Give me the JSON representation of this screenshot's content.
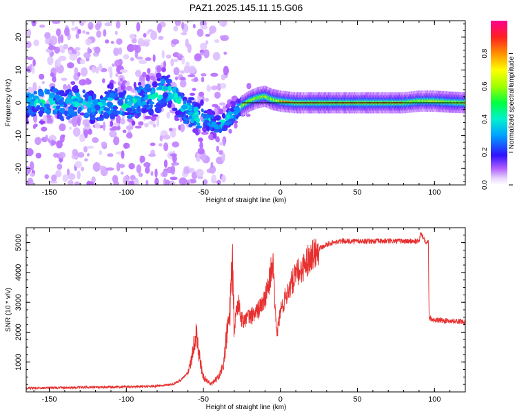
{
  "chart_data": [
    {
      "type": "heatmap",
      "title": "PAZ1.2025.145.11.15.G06",
      "xlabel": "Height of straight line (km)",
      "ylabel": "Frequency (Hz)",
      "xlim": [
        -165,
        120
      ],
      "ylim": [
        -25,
        25
      ],
      "xticks": [
        -150,
        -100,
        -50,
        0,
        50,
        100
      ],
      "yticks": [
        -20,
        -10,
        0,
        10,
        20
      ],
      "colorbar": {
        "label": "Normalized spectral amplitude",
        "range": [
          0,
          1
        ],
        "ticks": [
          0.0,
          0.2,
          0.4,
          0.6,
          0.8
        ]
      },
      "ridge": {
        "x": [
          -165,
          -150,
          -140,
          -130,
          -120,
          -110,
          -100,
          -90,
          -80,
          -75,
          -70,
          -65,
          -60,
          -55,
          -50,
          -45,
          -40,
          -35,
          -30,
          -25,
          -20,
          -15,
          -10,
          -5,
          0,
          10,
          20,
          40,
          60,
          80,
          90,
          100,
          110,
          120
        ],
        "freq": [
          0,
          0.5,
          -1,
          1,
          -2,
          0,
          -1,
          1,
          2,
          4,
          3,
          0,
          -3,
          -4,
          -5,
          -6,
          -7,
          -5,
          -3,
          -1,
          0.5,
          1.5,
          2,
          1,
          0.5,
          0,
          0,
          0,
          0,
          0,
          0.5,
          0.5,
          0.2,
          0
        ]
      }
    },
    {
      "type": "line",
      "title": "",
      "xlabel": "Height of straight line (km)",
      "ylabel": "SNR (10 * v/v)",
      "xlim": [
        -165,
        120
      ],
      "ylim": [
        0,
        5500
      ],
      "xticks": [
        -150,
        -100,
        -50,
        0,
        50,
        100
      ],
      "yticks": [
        1000,
        2000,
        3000,
        4000,
        5000
      ],
      "series": [
        {
          "name": "SNR",
          "color": "#e83030",
          "x": [
            -165,
            -150,
            -130,
            -110,
            -90,
            -80,
            -70,
            -65,
            -60,
            -57,
            -55,
            -52,
            -50,
            -45,
            -40,
            -37,
            -35,
            -33,
            -31,
            -30,
            -29,
            -27,
            -25,
            -20,
            -15,
            -10,
            -8,
            -5,
            -3,
            -2,
            0,
            5,
            10,
            15,
            20,
            25,
            30,
            35,
            40,
            50,
            60,
            70,
            80,
            90,
            91,
            95,
            96,
            96.5,
            100,
            110,
            120
          ],
          "values": [
            120,
            140,
            150,
            160,
            180,
            200,
            260,
            380,
            650,
            1300,
            2000,
            1000,
            500,
            250,
            500,
            900,
            1800,
            2600,
            4100,
            2000,
            2600,
            3000,
            2400,
            2500,
            2700,
            3100,
            3500,
            4400,
            2300,
            2000,
            2700,
            3400,
            3900,
            4200,
            4600,
            4800,
            4950,
            5000,
            5050,
            5050,
            5050,
            5050,
            5050,
            5050,
            5300,
            5000,
            5050,
            2500,
            2400,
            2380,
            2350
          ]
        }
      ]
    }
  ]
}
